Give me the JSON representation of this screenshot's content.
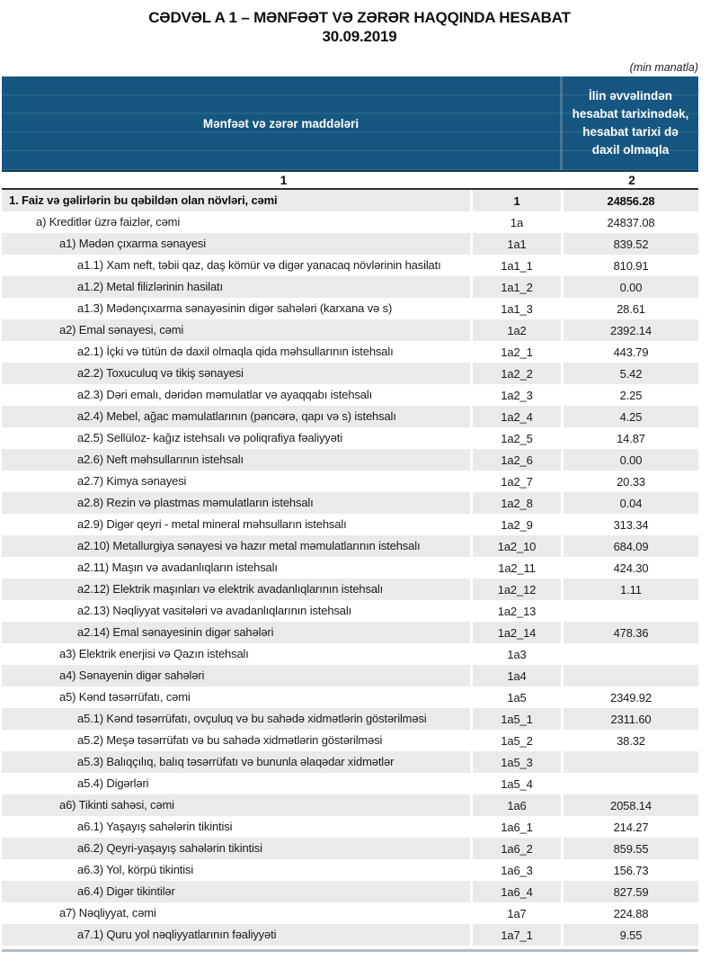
{
  "title": {
    "line1": "CƏDVƏL A 1 – MƏNFƏƏT VƏ ZƏRƏR HAQQINDA HESABAT",
    "line2": "30.09.2019"
  },
  "unit_note": "(min manatla)",
  "colors": {
    "header_blue": "#165680",
    "header_border": "#0a3c5e",
    "row_gray": "#eaeaea",
    "divider_dark": "#2f2f2f"
  },
  "table": {
    "header": {
      "col_items": "Mənfəət və zərər maddələri",
      "col_period": "İlin əvvəlindən hesabat tarixinədək, hesabat tarixi də daxil olmaqla",
      "col1_number": "1",
      "col2_number": "2"
    },
    "rows": [
      {
        "label": "1. Faiz və gəlirlərin bu qəbildən olan növləri, cəmi",
        "code": "1",
        "value": "24856.28",
        "level": 0,
        "bold": true
      },
      {
        "label": "a) Kreditlər üzrə faizlər, cəmi",
        "code": "1a",
        "value": "24837.08",
        "level": 1
      },
      {
        "label": "a1) Mədən çıxarma sənayesi",
        "code": "1a1",
        "value": "839.52",
        "level": 2
      },
      {
        "label": "a1.1) Xam neft, təbii qaz, daş kömür və digər yanacaq növlərinin hasilatı",
        "code": "1a1_1",
        "value": "810.91",
        "level": 3
      },
      {
        "label": "a1.2) Metal filizlərinin hasilatı",
        "code": "1a1_2",
        "value": "0.00",
        "level": 3
      },
      {
        "label": "a1.3) Mədənçıxarma sənayəsinin digər sahələri (karxana və s)",
        "code": "1a1_3",
        "value": "28.61",
        "level": 3
      },
      {
        "label": "a2) Emal sənayesi, cəmi",
        "code": "1a2",
        "value": "2392.14",
        "level": 2
      },
      {
        "label": "a2.1) İçki və tütün də daxil olmaqla qida məhsullarının istehsalı",
        "code": "1a2_1",
        "value": "443.79",
        "level": 3
      },
      {
        "label": "a2.2) Toxuculuq və tikiş sənayesi",
        "code": "1a2_2",
        "value": "5.42",
        "level": 3
      },
      {
        "label": "a2.3) Dəri emalı, dəridən məmulatlar və ayaqqabı istehsalı",
        "code": "1a2_3",
        "value": "2.25",
        "level": 3
      },
      {
        "label": "a2.4) Mebel, ağac məmulatlarının (pəncərə, qapı və s) istehsalı",
        "code": "1a2_4",
        "value": "4.25",
        "level": 3
      },
      {
        "label": "a2.5) Sellüloz- kağız istehsalı və poliqrafiya fəaliyyəti",
        "code": "1a2_5",
        "value": "14.87",
        "level": 3
      },
      {
        "label": "a2.6) Neft məhsullarının istehsalı",
        "code": "1a2_6",
        "value": "0.00",
        "level": 3
      },
      {
        "label": "a2.7) Kimya sənayesi",
        "code": "1a2_7",
        "value": "20.33",
        "level": 3
      },
      {
        "label": "a2.8) Rezin və plastmas məmulatların istehsalı",
        "code": "1a2_8",
        "value": "0.04",
        "level": 3
      },
      {
        "label": "a2.9) Digər qeyri - metal mineral məhsulların istehsalı",
        "code": "1a2_9",
        "value": "313.34",
        "level": 3
      },
      {
        "label": "a2.10) Metallurgiya sənayesi və hazır metal məmulatlarının istehsalı",
        "code": "1a2_10",
        "value": "684.09",
        "level": 3
      },
      {
        "label": "a2.11) Maşın və avadanlıqların istehsalı",
        "code": "1a2_11",
        "value": "424.30",
        "level": 3
      },
      {
        "label": "a2.12) Elektrik maşınları və elektrik avadanlıqlarının istehsalı",
        "code": "1a2_12",
        "value": "1.11",
        "level": 3
      },
      {
        "label": "a2.13) Nəqliyyat vasitələri və avadanlıqlarının istehsalı",
        "code": "1a2_13",
        "value": "",
        "level": 3
      },
      {
        "label": "a2.14) Emal sənayesinin digər sahələri",
        "code": "1a2_14",
        "value": "478.36",
        "level": 3
      },
      {
        "label": "a3) Elektrik enerjisi və Qazın istehsalı",
        "code": "1a3",
        "value": "",
        "level": 2
      },
      {
        "label": "a4) Sənayenin digər sahələri",
        "code": "1a4",
        "value": "",
        "level": 2
      },
      {
        "label": "a5) Kənd təsərrüfatı, cəmi",
        "code": "1a5",
        "value": "2349.92",
        "level": 2
      },
      {
        "label": "a5.1) Kənd təsərrüfatı, ovçuluq və bu sahədə xidmətlərin göstərilməsi",
        "code": "1a5_1",
        "value": "2311.60",
        "level": 3
      },
      {
        "label": "a5.2) Meşə təsərrüfatı və bu sahədə xidmətlərin göstərilməsi",
        "code": "1a5_2",
        "value": "38.32",
        "level": 3
      },
      {
        "label": "a5.3) Balıqçılıq, balıq təsərrüfatı və bununla əlaqədar xidmətlər",
        "code": "1a5_3",
        "value": "",
        "level": 3
      },
      {
        "label": "a5.4) Digərləri",
        "code": "1a5_4",
        "value": "",
        "level": 3
      },
      {
        "label": "a6) Tikinti sahəsi, cəmi",
        "code": "1a6",
        "value": "2058.14",
        "level": 2
      },
      {
        "label": "a6.1) Yaşayış sahələrin tikintisi",
        "code": "1a6_1",
        "value": "214.27",
        "level": 3
      },
      {
        "label": "a6.2) Qeyri-yaşayış sahələrin tikintisi",
        "code": "1a6_2",
        "value": "859.55",
        "level": 3
      },
      {
        "label": "a6.3) Yol, körpü tikintisi",
        "code": "1a6_3",
        "value": "156.73",
        "level": 3
      },
      {
        "label": "a6.4) Digər tikintilər",
        "code": "1a6_4",
        "value": "827.59",
        "level": 3
      },
      {
        "label": "a7) Nəqliyyat, cəmi",
        "code": "1a7",
        "value": "224.88",
        "level": 2
      },
      {
        "label": "a7.1) Quru yol nəqliyyatlarının fəaliyyəti",
        "code": "1a7_1",
        "value": "9.55",
        "level": 3
      }
    ]
  }
}
